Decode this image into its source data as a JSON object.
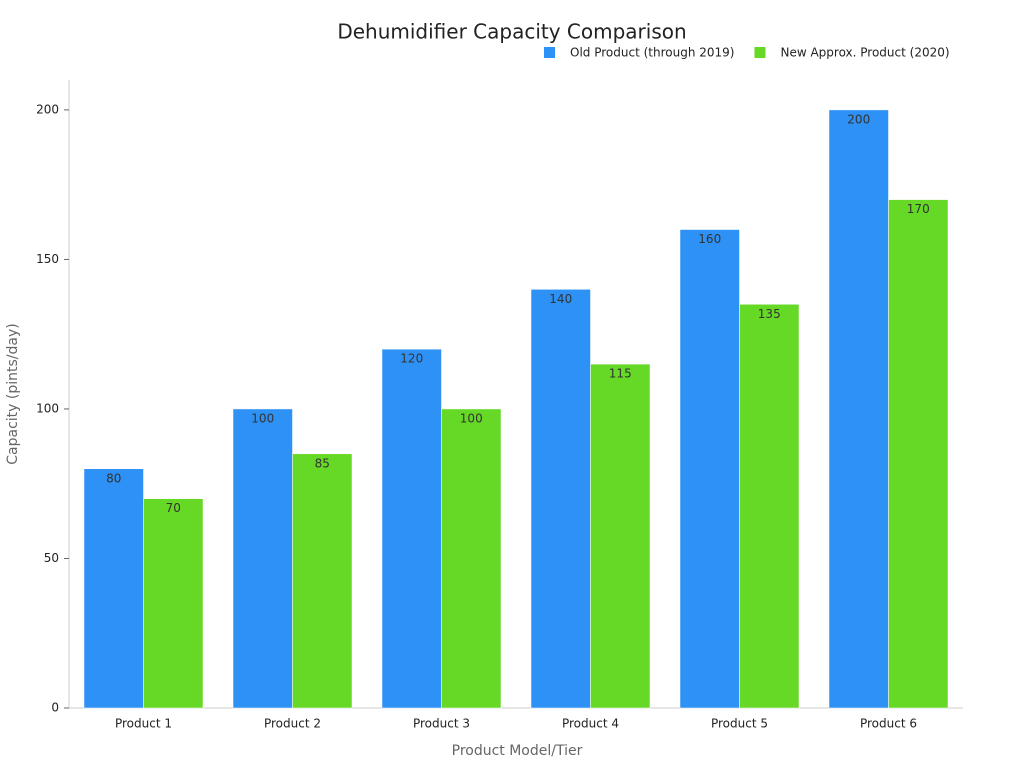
{
  "chart_data": {
    "type": "bar",
    "title": "Dehumidifier Capacity Comparison",
    "x_label": "Product Model/Tier",
    "y_label": "Capacity (pints/day)",
    "categories": [
      "Product 1",
      "Product 2",
      "Product 3",
      "Product 4",
      "Product 5",
      "Product 6"
    ],
    "series": [
      {
        "name": "Old Product (through 2019)",
        "color": "#2e91f5",
        "values": [
          80,
          100,
          120,
          140,
          160,
          200
        ]
      },
      {
        "name": "New Approx. Product (2020)",
        "color": "#66d926",
        "values": [
          70,
          85,
          100,
          115,
          135,
          170
        ]
      }
    ],
    "ylim": [
      0,
      210
    ],
    "yticks": [
      0,
      50,
      100,
      150,
      200
    ],
    "grid": false,
    "legend": "top-right"
  }
}
